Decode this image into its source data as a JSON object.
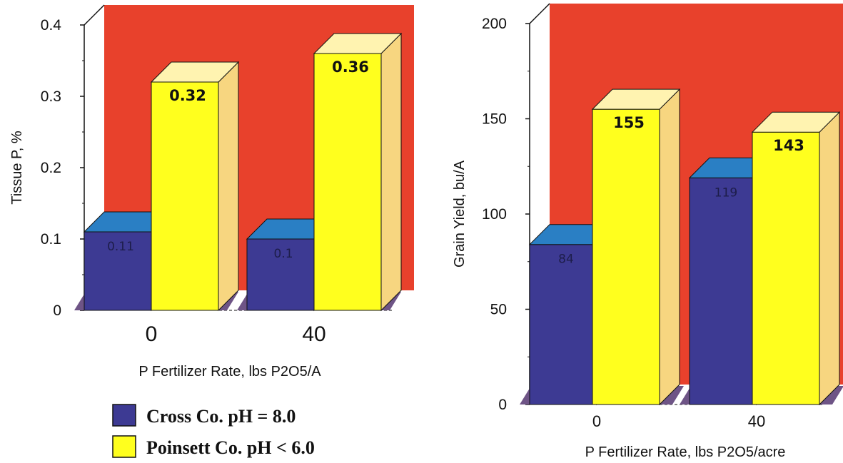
{
  "colors": {
    "wall": "#e8412c",
    "series_cross": "#3d3a93",
    "series_cross_top": "#2a7fc4",
    "series_poinsett": "#ffff1e",
    "series_poinsett_top": "#fff3b0",
    "series_poinsett_side": "#f7d680",
    "floor": "#6e5486"
  },
  "legend": {
    "items": [
      {
        "label": "Cross Co. pH = 8.0"
      },
      {
        "label": "Poinsett Co. pH < 6.0"
      }
    ]
  },
  "chart_data": [
    {
      "type": "bar",
      "categories": [
        "0",
        "40"
      ],
      "series": [
        {
          "name": "Cross Co. pH = 8.0",
          "values": [
            0.11,
            0.1
          ],
          "labels": [
            "0.11",
            "0.1"
          ]
        },
        {
          "name": "Poinsett Co. pH < 6.0",
          "values": [
            0.32,
            0.36
          ],
          "labels": [
            "0.32",
            "0.36"
          ]
        }
      ],
      "ylabel": "Tissue P, %",
      "xlabel": "P Fertilizer Rate, lbs P2O5/A",
      "ylim": [
        0,
        0.4
      ],
      "yticks": [
        "0",
        "0.1",
        "0.2",
        "0.3",
        "0.4"
      ],
      "legend_position": "bottom"
    },
    {
      "type": "bar",
      "categories": [
        "0",
        "40"
      ],
      "series": [
        {
          "name": "Cross Co. pH = 8.0",
          "values": [
            84,
            119
          ],
          "labels": [
            "84",
            "119"
          ]
        },
        {
          "name": "Poinsett Co. pH < 6.0",
          "values": [
            155,
            143
          ],
          "labels": [
            "155",
            "143"
          ]
        }
      ],
      "ylabel": "Grain Yield, bu/A",
      "xlabel": "P Fertilizer Rate, lbs P2O5/acre",
      "ylim": [
        0,
        200
      ],
      "yticks": [
        "0",
        "50",
        "100",
        "150",
        "200"
      ]
    }
  ]
}
